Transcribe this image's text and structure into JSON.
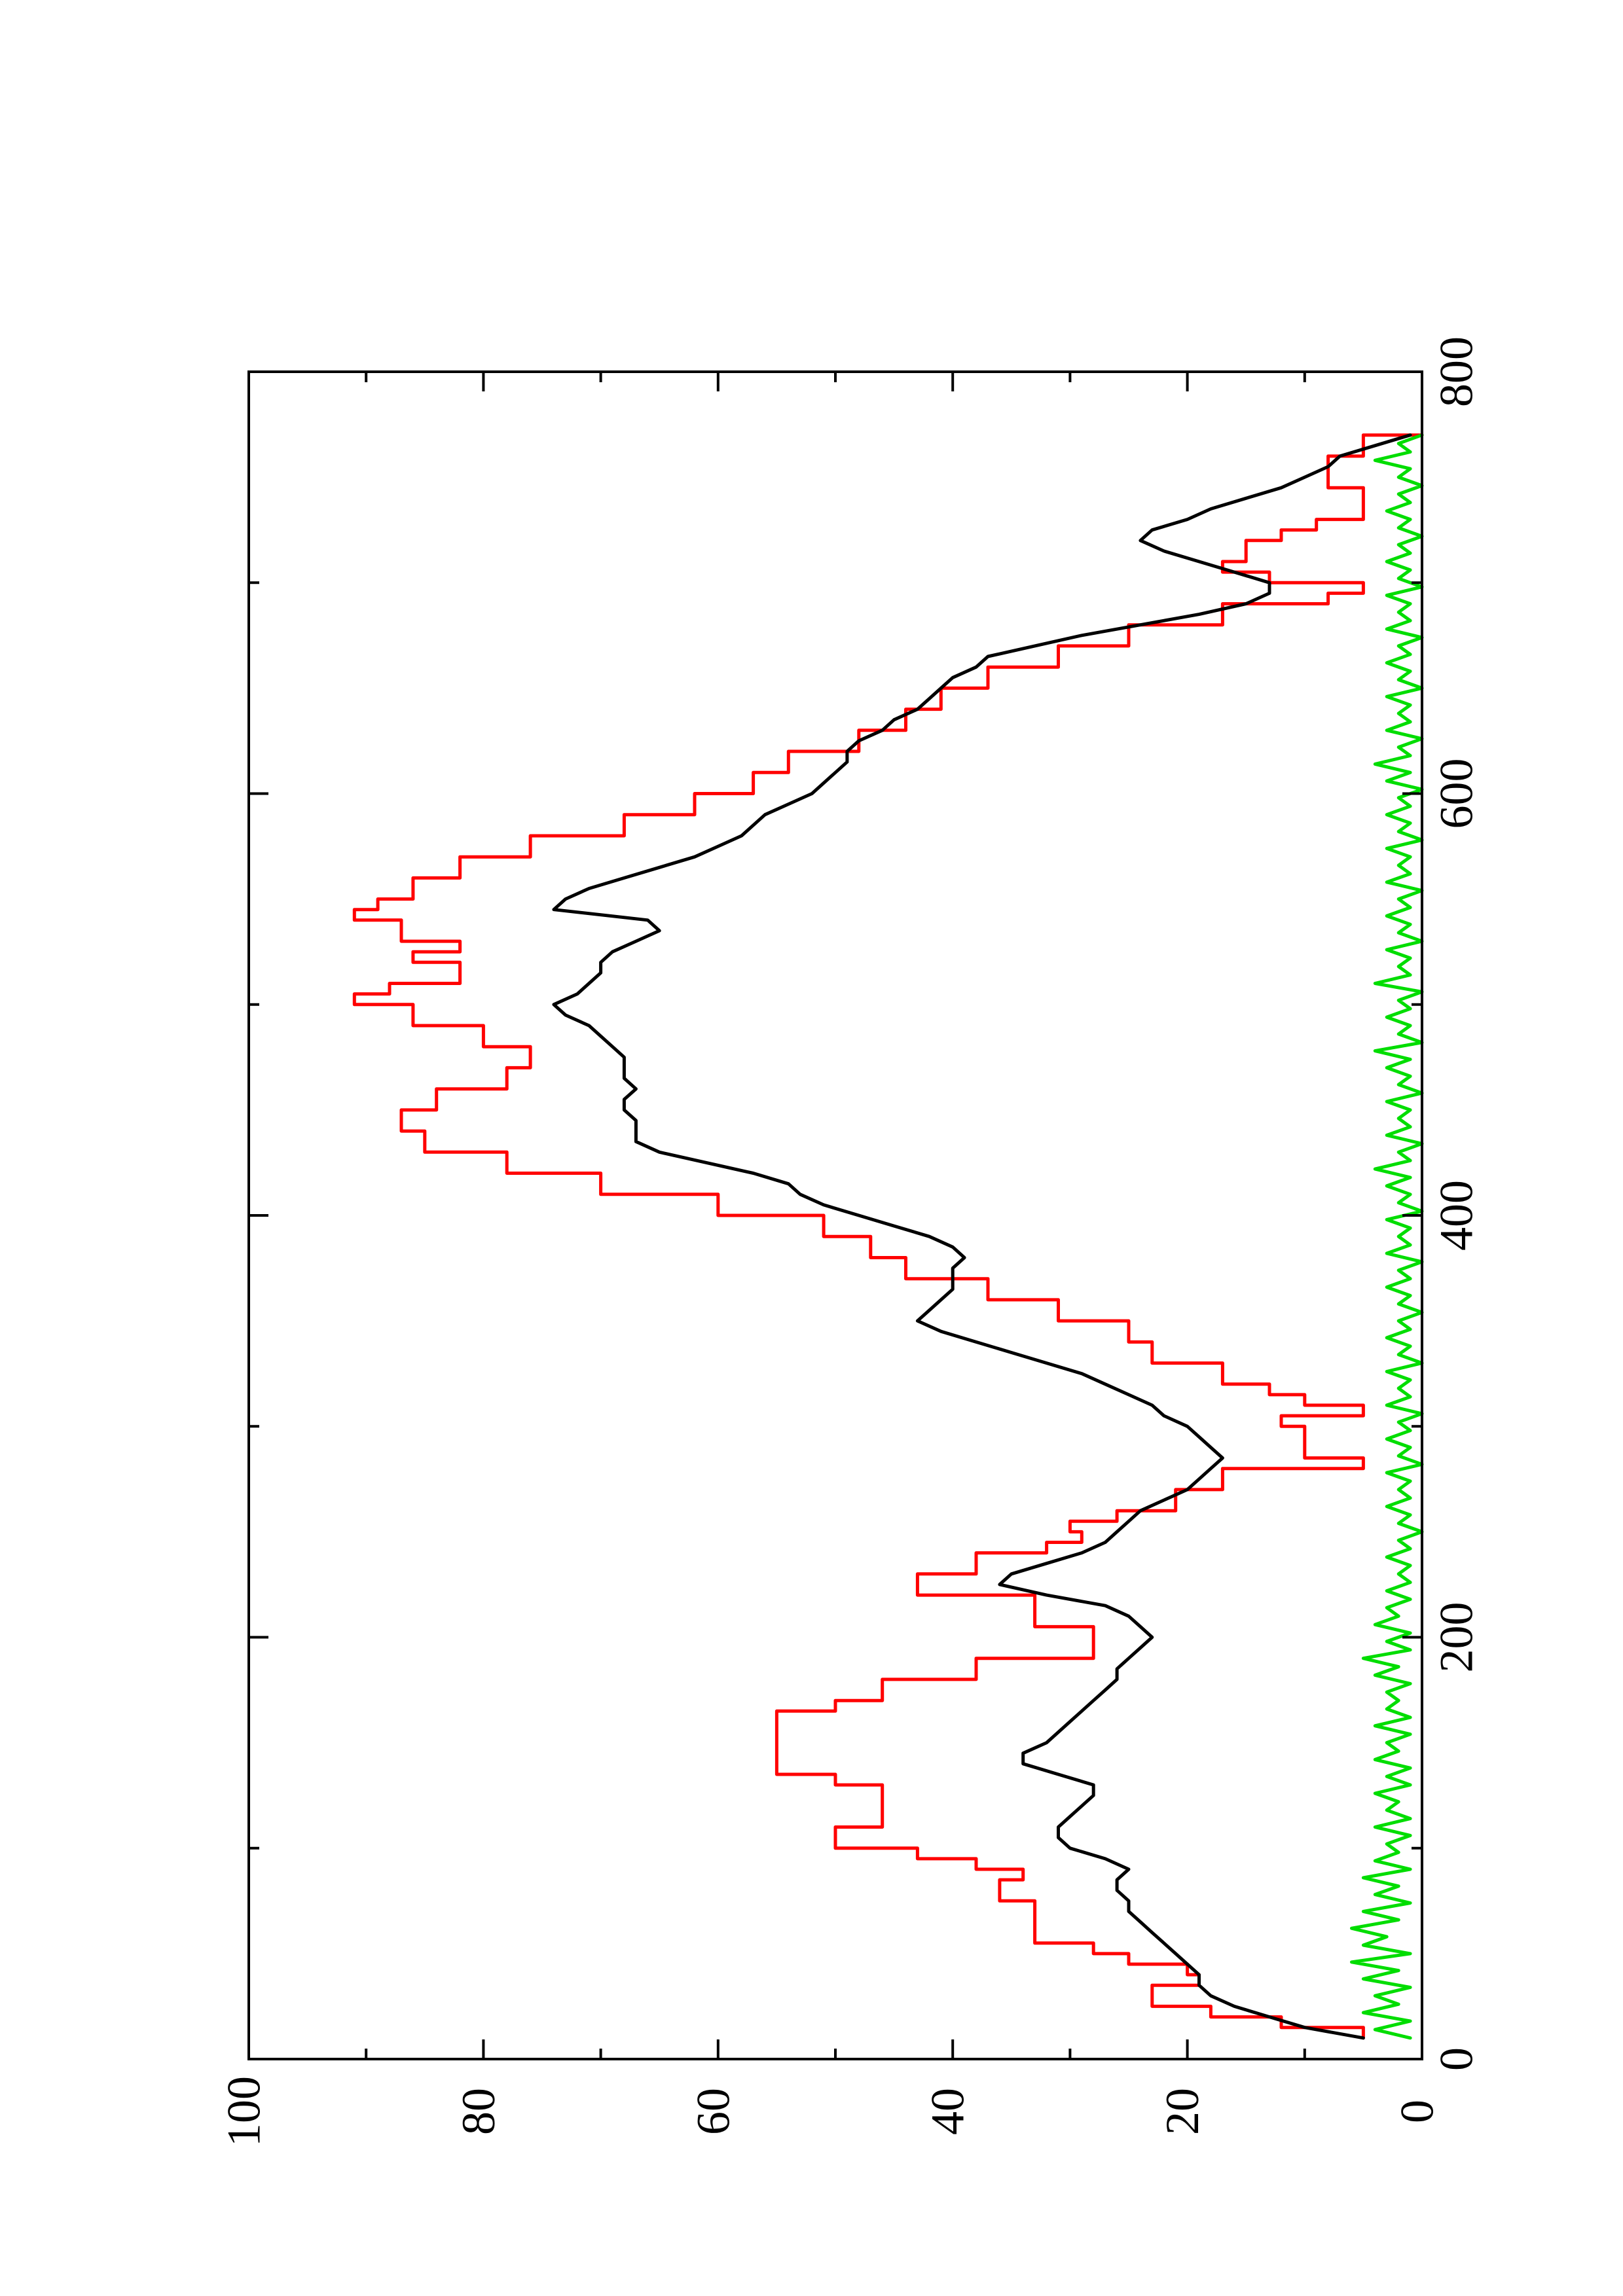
{
  "chart_data": {
    "type": "line",
    "orientation": "rotated-90-ccw",
    "title": "",
    "xlabel": "",
    "ylabel": "",
    "xlim": [
      0,
      800
    ],
    "ylim": [
      0,
      100
    ],
    "x_ticks": [
      "0",
      "200",
      "400",
      "600",
      "800"
    ],
    "y_ticks": [
      "0",
      "20",
      "40",
      "60",
      "80",
      "100"
    ],
    "x_minor_ticks": [
      100,
      300,
      500,
      700
    ],
    "y_minor_ticks": [
      10,
      30,
      50,
      70,
      90
    ],
    "grid": false,
    "legend": "none",
    "series": [
      {
        "color": "#ff0000",
        "step": true,
        "x": [
          10,
          15,
          20,
          25,
          30,
          35,
          40,
          45,
          50,
          55,
          60,
          65,
          70,
          75,
          80,
          85,
          90,
          95,
          100,
          105,
          110,
          120,
          130,
          135,
          140,
          150,
          160,
          165,
          170,
          180,
          190,
          200,
          205,
          210,
          220,
          230,
          240,
          245,
          250,
          255,
          260,
          270,
          280,
          285,
          290,
          300,
          305,
          310,
          315,
          320,
          330,
          340,
          350,
          360,
          370,
          380,
          390,
          400,
          410,
          420,
          430,
          440,
          450,
          460,
          470,
          480,
          490,
          500,
          505,
          510,
          520,
          525,
          530,
          540,
          545,
          550,
          560,
          570,
          580,
          590,
          600,
          605,
          610,
          620,
          630,
          640,
          650,
          660,
          670,
          680,
          690,
          695,
          700,
          705,
          710,
          720,
          725,
          730,
          740,
          745,
          750,
          760,
          765,
          770
        ],
        "values": [
          5,
          12,
          18,
          23,
          23,
          19,
          20,
          25,
          28,
          33,
          33,
          33,
          33,
          36,
          36,
          34,
          38,
          43,
          50,
          50,
          46,
          46,
          50,
          55,
          55,
          55,
          55,
          50,
          46,
          38,
          28,
          28,
          33,
          33,
          43,
          38,
          32,
          29,
          30,
          26,
          21,
          17,
          5,
          10,
          10,
          12,
          5,
          10,
          13,
          17,
          23,
          25,
          31,
          37,
          44,
          47,
          51,
          60,
          70,
          78,
          85,
          87,
          84,
          78,
          76,
          80,
          86,
          91,
          88,
          82,
          86,
          82,
          87,
          91,
          89,
          86,
          82,
          76,
          68,
          62,
          57,
          57,
          54,
          48,
          44,
          41,
          37,
          31,
          25,
          17,
          8,
          5,
          13,
          17,
          15,
          12,
          9,
          5,
          5,
          8,
          8,
          5,
          5,
          0
        ]
      },
      {
        "color": "#000000",
        "step": false,
        "x": [
          10,
          15,
          20,
          25,
          30,
          35,
          40,
          45,
          50,
          55,
          60,
          65,
          70,
          75,
          80,
          85,
          90,
          95,
          100,
          105,
          110,
          115,
          120,
          125,
          130,
          135,
          140,
          145,
          150,
          155,
          160,
          165,
          170,
          175,
          180,
          185,
          190,
          195,
          200,
          205,
          210,
          215,
          220,
          225,
          230,
          235,
          240,
          245,
          250,
          255,
          260,
          265,
          270,
          275,
          280,
          285,
          290,
          295,
          300,
          305,
          310,
          315,
          320,
          325,
          330,
          335,
          340,
          345,
          350,
          355,
          360,
          365,
          370,
          375,
          380,
          385,
          390,
          395,
          400,
          405,
          410,
          415,
          420,
          425,
          430,
          435,
          440,
          445,
          450,
          455,
          460,
          465,
          470,
          475,
          480,
          485,
          490,
          495,
          500,
          505,
          510,
          515,
          520,
          525,
          530,
          535,
          540,
          545,
          550,
          555,
          560,
          565,
          570,
          575,
          580,
          585,
          590,
          595,
          600,
          605,
          610,
          615,
          620,
          625,
          630,
          635,
          640,
          645,
          650,
          655,
          660,
          665,
          670,
          675,
          680,
          685,
          690,
          695,
          700,
          705,
          710,
          715,
          720,
          725,
          730,
          735,
          740,
          745,
          750,
          755,
          760,
          765,
          770
        ],
        "values": [
          5,
          10,
          13,
          16,
          18,
          19,
          19,
          20,
          21,
          22,
          23,
          24,
          25,
          25,
          26,
          26,
          25,
          27,
          30,
          31,
          31,
          30,
          29,
          28,
          28,
          31,
          34,
          34,
          32,
          31,
          30,
          29,
          28,
          27,
          26,
          26,
          25,
          24,
          23,
          24,
          25,
          27,
          32,
          36,
          35,
          32,
          29,
          27,
          26,
          25,
          24,
          22,
          20,
          19,
          18,
          17,
          18,
          19,
          20,
          22,
          23,
          25,
          27,
          29,
          32,
          35,
          38,
          41,
          43,
          42,
          41,
          40,
          40,
          40,
          39,
          40,
          42,
          45,
          48,
          51,
          53,
          54,
          57,
          61,
          65,
          67,
          67,
          67,
          68,
          68,
          67,
          68,
          68,
          68,
          69,
          70,
          71,
          73,
          74,
          72,
          71,
          70,
          70,
          69,
          67,
          65,
          66,
          74,
          73,
          71,
          68,
          65,
          62,
          60,
          58,
          57,
          56,
          54,
          52,
          51,
          50,
          49,
          49,
          48,
          46,
          45,
          43,
          42,
          41,
          40,
          38,
          37,
          33,
          29,
          24,
          19,
          15,
          13,
          13,
          16,
          19,
          22,
          24,
          23,
          20,
          18,
          15,
          12,
          10,
          8,
          7,
          4,
          1
        ]
      },
      {
        "color": "#00dd00",
        "step": false,
        "x": [
          10,
          14,
          18,
          22,
          26,
          30,
          34,
          38,
          42,
          46,
          50,
          54,
          58,
          62,
          66,
          70,
          74,
          78,
          82,
          86,
          90,
          94,
          98,
          102,
          106,
          110,
          114,
          118,
          122,
          126,
          130,
          134,
          138,
          142,
          146,
          150,
          154,
          158,
          162,
          166,
          170,
          174,
          178,
          182,
          186,
          190,
          194,
          198,
          202,
          206,
          210,
          214,
          218,
          222,
          226,
          230,
          234,
          238,
          242,
          246,
          250,
          254,
          258,
          262,
          266,
          270,
          274,
          278,
          282,
          286,
          290,
          294,
          298,
          302,
          306,
          310,
          314,
          318,
          322,
          326,
          330,
          334,
          338,
          342,
          346,
          350,
          354,
          358,
          362,
          366,
          370,
          374,
          378,
          382,
          386,
          390,
          394,
          398,
          402,
          406,
          410,
          414,
          418,
          422,
          426,
          430,
          434,
          438,
          442,
          446,
          450,
          454,
          458,
          462,
          466,
          470,
          474,
          478,
          482,
          486,
          490,
          494,
          498,
          502,
          506,
          510,
          514,
          518,
          522,
          526,
          530,
          534,
          538,
          542,
          546,
          550,
          554,
          558,
          562,
          566,
          570,
          574,
          578,
          582,
          586,
          590,
          594,
          598,
          602,
          606,
          610,
          614,
          618,
          622,
          626,
          630,
          634,
          638,
          642,
          646,
          650,
          654,
          658,
          662,
          666,
          670,
          674,
          678,
          682,
          686,
          690,
          694,
          698,
          702,
          706,
          710,
          714,
          718,
          722,
          726,
          730,
          734,
          738,
          742,
          746,
          750,
          754,
          758,
          762,
          766,
          770
        ],
        "values": [
          1,
          4,
          1,
          5,
          2,
          4,
          1,
          5,
          2,
          6,
          1,
          5,
          3,
          6,
          2,
          5,
          1,
          4,
          2,
          5,
          1,
          4,
          2,
          3,
          1,
          4,
          1,
          3,
          2,
          4,
          1,
          3,
          1,
          4,
          2,
          3,
          1,
          4,
          1,
          3,
          2,
          3,
          1,
          4,
          2,
          5,
          1,
          3,
          1,
          4,
          2,
          3,
          1,
          3,
          1,
          2,
          1,
          3,
          1,
          2,
          0,
          2,
          1,
          3,
          1,
          2,
          1,
          3,
          0,
          2,
          1,
          3,
          1,
          2,
          0,
          3,
          1,
          2,
          1,
          3,
          0,
          2,
          1,
          3,
          1,
          2,
          0,
          2,
          1,
          3,
          1,
          2,
          0,
          3,
          1,
          2,
          1,
          3,
          0,
          2,
          1,
          3,
          1,
          4,
          1,
          2,
          0,
          3,
          1,
          2,
          1,
          3,
          0,
          2,
          1,
          3,
          1,
          4,
          0,
          2,
          1,
          3,
          1,
          2,
          0,
          4,
          1,
          2,
          1,
          3,
          0,
          2,
          1,
          3,
          1,
          2,
          0,
          3,
          1,
          2,
          1,
          3,
          0,
          2,
          1,
          3,
          1,
          2,
          0,
          3,
          1,
          4,
          1,
          2,
          0,
          3,
          1,
          2,
          1,
          3,
          0,
          2,
          1,
          3,
          1,
          2,
          0,
          3,
          1,
          2,
          1,
          3,
          0,
          2,
          1,
          3,
          1,
          2,
          0,
          2,
          1,
          3,
          1,
          2,
          0,
          2,
          1,
          4,
          1,
          2,
          0
        ]
      }
    ]
  }
}
